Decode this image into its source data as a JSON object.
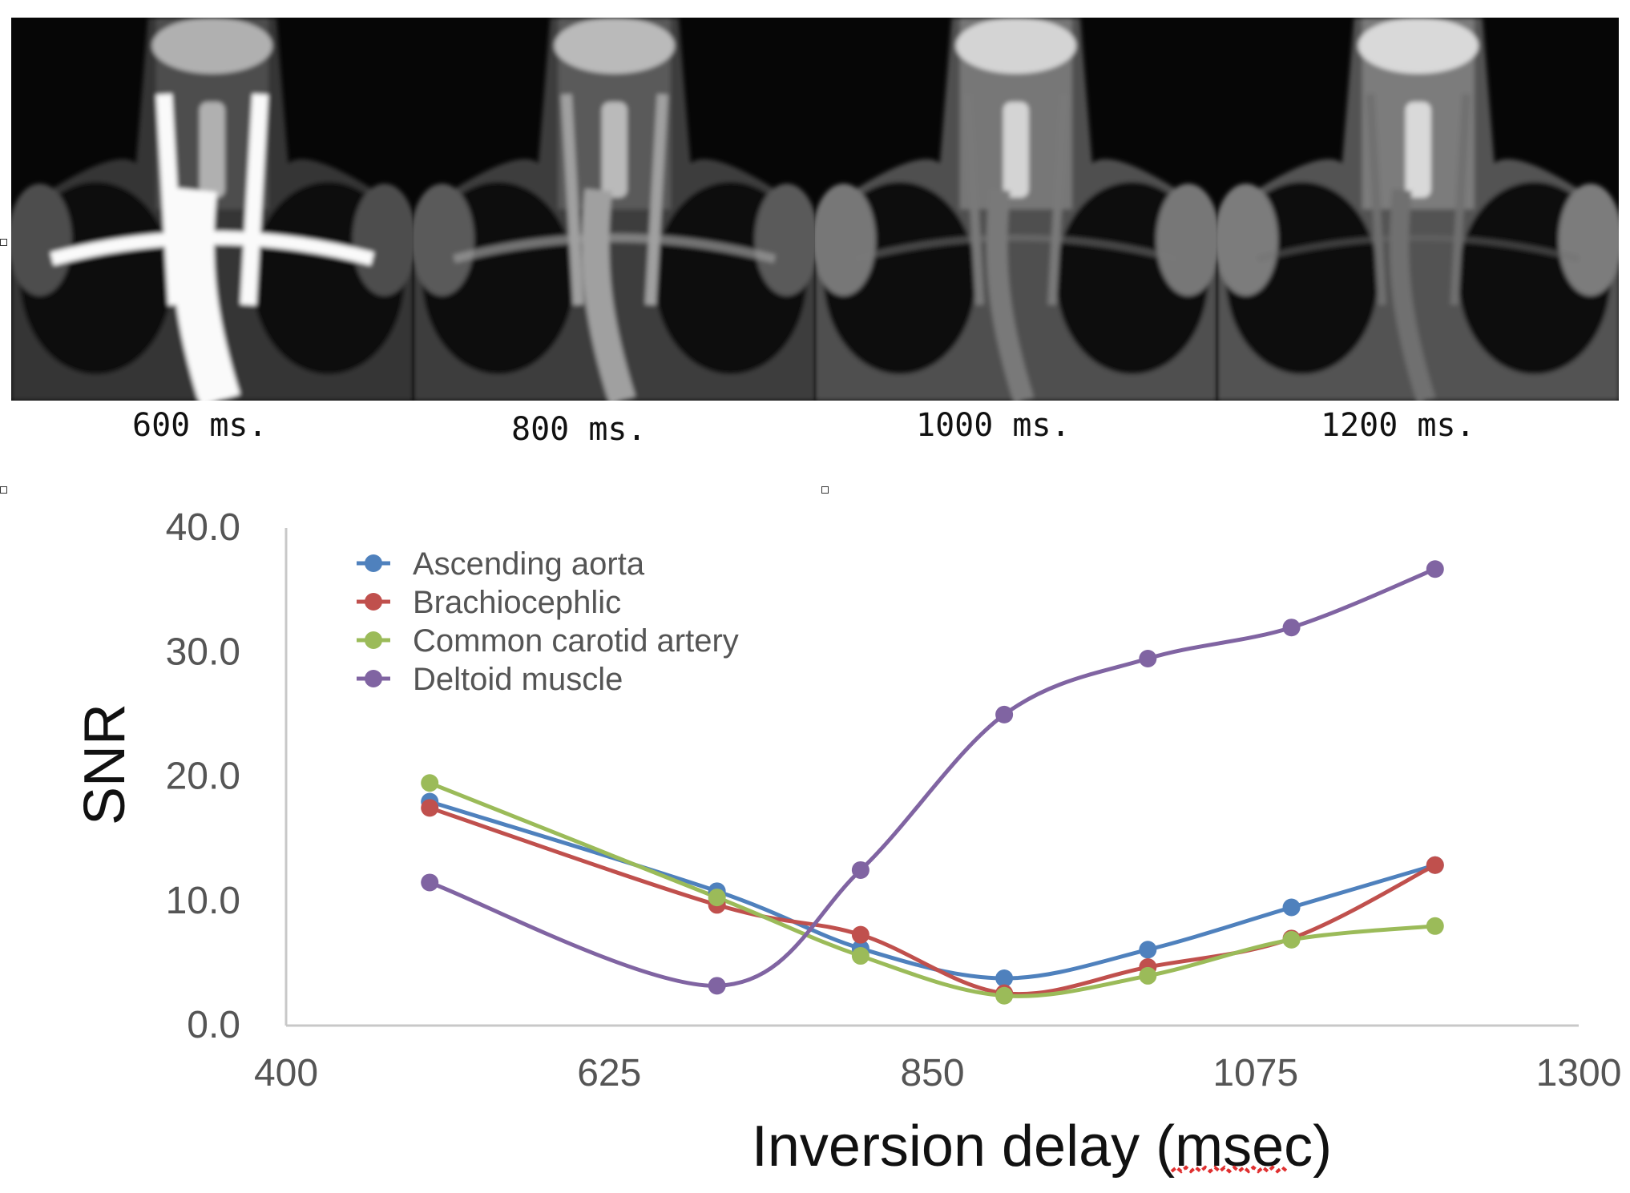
{
  "panels": [
    {
      "label": "600 ms.",
      "brightness": 0.35,
      "vessel": 1.0
    },
    {
      "label": "800 ms.",
      "brightness": 0.45,
      "vessel": 0.55
    },
    {
      "label": "1000 ms.",
      "brightness": 0.7,
      "vessel": 0.35
    },
    {
      "label": "1200 ms.",
      "brightness": 0.75,
      "vessel": 0.3
    }
  ],
  "chart_data": {
    "type": "line",
    "title": "",
    "xlabel": "Inversion delay (msec)",
    "ylabel": "SNR",
    "xlim": [
      400,
      1300
    ],
    "ylim": [
      0,
      40
    ],
    "xticks": [
      "400",
      "625",
      "850",
      "1075",
      "1300"
    ],
    "yticks": [
      "0.0",
      "10.0",
      "20.0",
      "30.0",
      "40.0"
    ],
    "x": [
      500,
      700,
      800,
      900,
      1000,
      1100,
      1200
    ],
    "legend": "top-left",
    "grid": false,
    "series": [
      {
        "name": "Ascending aorta",
        "color": "#4f81bd",
        "values": [
          18.0,
          10.8,
          6.2,
          3.8,
          6.1,
          9.5,
          12.9
        ]
      },
      {
        "name": "Brachiocephlic",
        "color": "#c0504d",
        "values": [
          17.5,
          9.7,
          7.3,
          2.6,
          4.7,
          7.0,
          12.9
        ]
      },
      {
        "name": "Common carotid artery",
        "color": "#9bbb59",
        "values": [
          19.5,
          10.3,
          5.6,
          2.4,
          4.0,
          6.9,
          8.0
        ]
      },
      {
        "name": "Deltoid muscle",
        "color": "#8064a2",
        "values": [
          11.5,
          3.2,
          12.5,
          25.0,
          29.5,
          32.0,
          36.7
        ]
      }
    ]
  }
}
